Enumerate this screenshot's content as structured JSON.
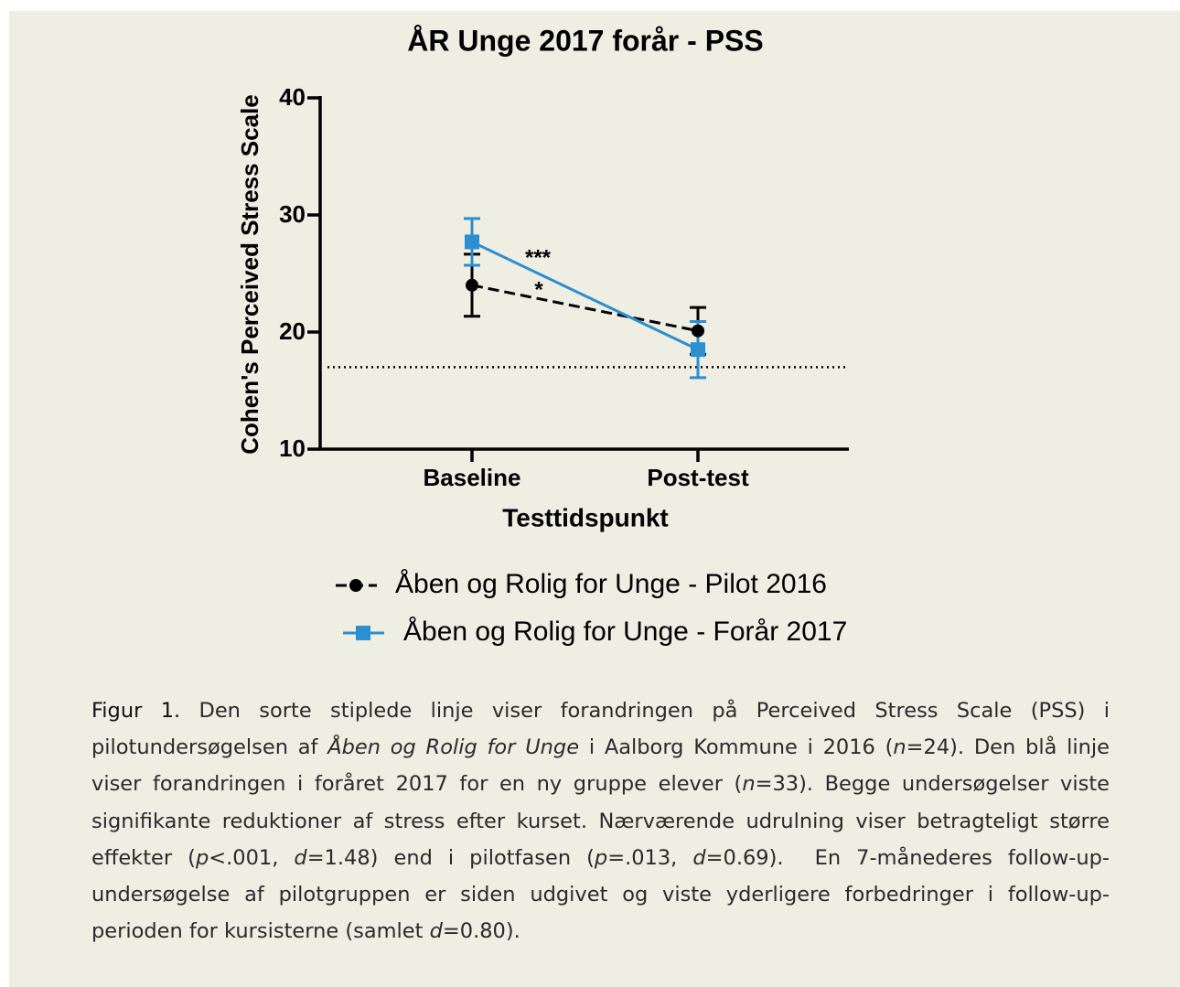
{
  "chart_data": {
    "type": "line",
    "title": "ÅR Unge 2017 forår - PSS",
    "ylabel": "Cohen's Perceived Stress Scale",
    "xlabel": "Testtidspunkt",
    "categories": [
      "Baseline",
      "Post-test"
    ],
    "ylim": [
      10,
      40
    ],
    "yticks": [
      10,
      20,
      30,
      40
    ],
    "reference_line": 17,
    "series": [
      {
        "name": "Åben og Rolig for Unge - Pilot 2016",
        "color": "#000000",
        "values": [
          24.0,
          20.1
        ],
        "errors": [
          2.65,
          2.0
        ]
      },
      {
        "name": "Åben og Rolig for Unge - Forår 2017",
        "color": "#2b8fd0",
        "values": [
          27.7,
          18.5
        ],
        "errors": [
          2.0,
          2.4
        ]
      }
    ],
    "annotations": [
      "***",
      "*"
    ]
  },
  "caption": [
    "Figur 1.",
    " Den sorte stiplede linje viser forandringen på Perceived Stress Scale (PSS) i pilotundersøgelsen af ",
    "Åben og Rolig for Unge",
    " i Aalborg Kommune i 2016 (",
    "n",
    "=24). Den blå linje viser forandringen i foråret 2017 for en ny gruppe elever (",
    "n",
    "=33). Begge undersøgelser viste signifikante reduktioner af stress efter kurset. Nærværende udrulning viser betragteligt større effekter (",
    "p",
    "<.001, ",
    "d",
    "=1.48) end i pilotfasen (",
    "p",
    "=.013, ",
    "d",
    "=0.69).  En 7-månederes follow-up-undersøgelse af pilotgruppen er siden udgivet og viste yderligere forbedringer i follow-up-perioden for kursisterne (samlet ",
    "d",
    "=0.80)."
  ]
}
